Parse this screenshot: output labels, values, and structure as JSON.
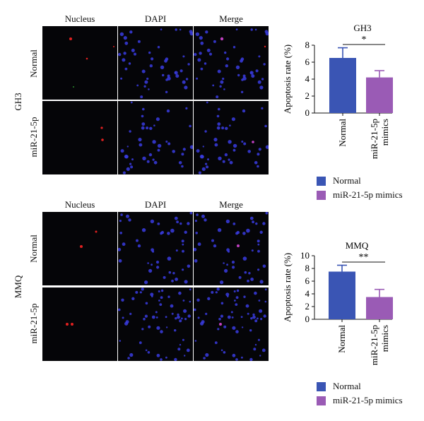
{
  "figure": {
    "column_headers": [
      "Nucleus",
      "DAPI",
      "Merge"
    ],
    "groups": [
      {
        "name": "GH3",
        "rows": [
          "Normal",
          "miR-21-5p"
        ]
      },
      {
        "name": "MMQ",
        "rows": [
          "Normal",
          "miR-21-5p"
        ]
      }
    ],
    "legend": [
      {
        "label": "Normal",
        "color": "#3a55b4"
      },
      {
        "label": "miR-21-5p mimics",
        "color": "#9a5bb5"
      }
    ]
  },
  "chart_data": [
    {
      "type": "bar",
      "title": "GH3",
      "ylabel": "Apoptosis rate (%)",
      "categories": [
        "Normal",
        "miR-21-5p mimics"
      ],
      "values": [
        6.5,
        4.2
      ],
      "errors": [
        1.2,
        0.8
      ],
      "colors": [
        "#3a55b4",
        "#9a5bb5"
      ],
      "ylim": [
        0,
        8
      ],
      "yticks": [
        0,
        2,
        4,
        6,
        8
      ],
      "significance": "*"
    },
    {
      "type": "bar",
      "title": "MMQ",
      "ylabel": "Apoptosis rate (%)",
      "categories": [
        "Normal",
        "miR-21-5p mimics"
      ],
      "values": [
        7.5,
        3.5
      ],
      "errors": [
        1.0,
        1.2
      ],
      "colors": [
        "#3a55b4",
        "#9a5bb5"
      ],
      "ylim": [
        0,
        10
      ],
      "yticks": [
        0,
        2,
        4,
        6,
        8,
        10
      ],
      "significance": "**"
    }
  ]
}
